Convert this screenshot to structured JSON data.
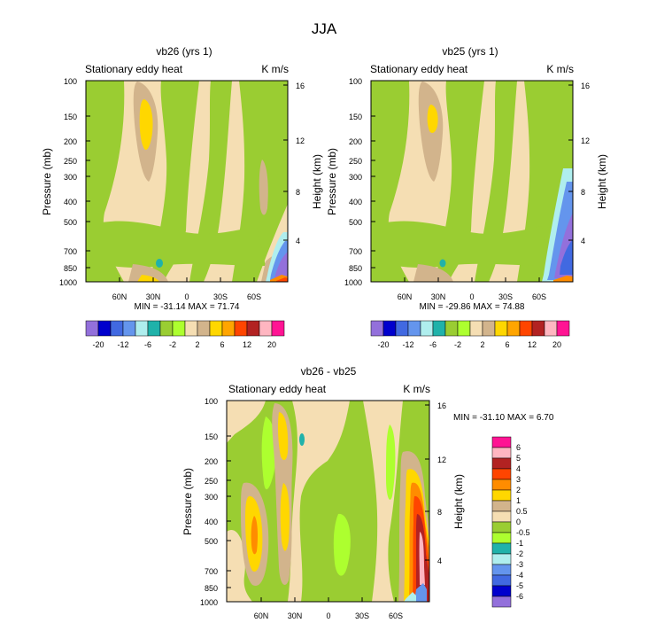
{
  "title": "JJA",
  "colors": {
    "panel_bg": "#f5deb3",
    "base_green": "#9acd32",
    "light_green": "#adff2f",
    "tan": "#d2b48c",
    "yellow": "#ffd700",
    "orange": "#ff8c00",
    "red_orange": "#ff4500",
    "dark_red": "#b22222",
    "pink": "#ffb6c1",
    "magenta": "#ff1493",
    "teal": "#20b2aa",
    "light_cyan": "#afeeee",
    "blue": "#6495ed",
    "med_blue": "#4169e1",
    "dark_blue": "#0000cd",
    "purple": "#9370db"
  },
  "chart_data": [
    {
      "type": "heatmap",
      "title": "vb26 (yrs 1)",
      "left_label": "Stationary eddy heat",
      "right_label": "K m/s",
      "ylabel": "Pressure (mb)",
      "ylabel_right": "Height (km)",
      "x_ticks": [
        "60N",
        "30N",
        "0",
        "30S",
        "60S"
      ],
      "y_ticks": [
        "100",
        "150",
        "200",
        "250",
        "300",
        "400",
        "500",
        "700",
        "850",
        "1000"
      ],
      "y_ticks_right": [
        "16",
        "12",
        "8",
        "4"
      ],
      "stats": "MIN = -31.14  MAX =  71.74",
      "colorbar_labels": [
        "-20",
        "-12",
        "-6",
        "-2",
        "2",
        "6",
        "12",
        "20"
      ]
    },
    {
      "type": "heatmap",
      "title": "vb25 (yrs 1)",
      "left_label": "Stationary eddy heat",
      "right_label": "K m/s",
      "ylabel": "Pressure (mb)",
      "ylabel_right": "Height (km)",
      "x_ticks": [
        "60N",
        "30N",
        "0",
        "30S",
        "60S"
      ],
      "y_ticks": [
        "100",
        "150",
        "200",
        "250",
        "300",
        "400",
        "500",
        "700",
        "850",
        "1000"
      ],
      "y_ticks_right": [
        "16",
        "12",
        "8",
        "4"
      ],
      "stats": "MIN = -29.86  MAX =  74.88",
      "colorbar_labels": [
        "-20",
        "-12",
        "-6",
        "-2",
        "2",
        "6",
        "12",
        "20"
      ]
    },
    {
      "type": "heatmap",
      "title": "vb26 - vb25",
      "left_label": "Stationary eddy heat",
      "right_label": "K m/s",
      "ylabel": "Pressure (mb)",
      "ylabel_right": "Height (km)",
      "x_ticks": [
        "60N",
        "30N",
        "0",
        "30S",
        "60S"
      ],
      "y_ticks": [
        "100",
        "150",
        "200",
        "250",
        "300",
        "400",
        "500",
        "700",
        "850",
        "1000"
      ],
      "y_ticks_right": [
        "16",
        "12",
        "8",
        "4"
      ],
      "stats": "MIN = -31.10  MAX =   6.70",
      "colorbar_labels": [
        "6",
        "5",
        "4",
        "3",
        "2",
        "1",
        "0.5",
        "0",
        "-0.5",
        "-1",
        "-2",
        "-3",
        "-4",
        "-5",
        "-6"
      ]
    }
  ]
}
